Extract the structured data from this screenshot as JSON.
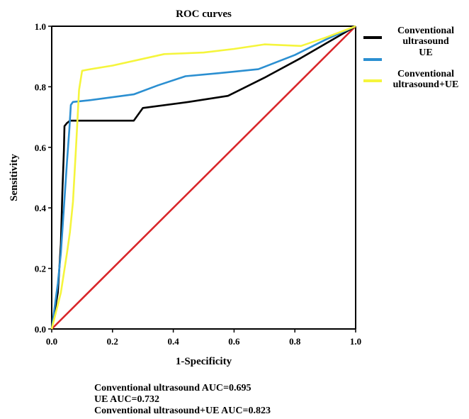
{
  "chart_data": {
    "type": "line",
    "title": "ROC curves",
    "xlabel": "1-Specificity",
    "ylabel": "Sensitivity",
    "xlim": [
      0,
      1
    ],
    "ylim": [
      0,
      1
    ],
    "x_ticks": [
      "0.0",
      "0.2",
      "0.4",
      "0.6",
      "0.8",
      "1.0"
    ],
    "y_ticks": [
      "0.0",
      "0.2",
      "0.4",
      "0.6",
      "0.8",
      "1.0"
    ],
    "grid": false,
    "legend_position": "right",
    "series": [
      {
        "name_lines": [
          "Conventional",
          "ultrasound"
        ],
        "color": "#000000",
        "points": [
          [
            0,
            0
          ],
          [
            0.02,
            0.12
          ],
          [
            0.03,
            0.28
          ],
          [
            0.035,
            0.45
          ],
          [
            0.04,
            0.59
          ],
          [
            0.042,
            0.67
          ],
          [
            0.05,
            0.68
          ],
          [
            0.06,
            0.688
          ],
          [
            0.27,
            0.688
          ],
          [
            0.3,
            0.73
          ],
          [
            0.45,
            0.75
          ],
          [
            0.58,
            0.77
          ],
          [
            0.7,
            0.83
          ],
          [
            0.82,
            0.895
          ],
          [
            1,
            1
          ]
        ]
      },
      {
        "name_lines": [
          "UE"
        ],
        "color": "#2b8fd1",
        "points": [
          [
            0,
            0
          ],
          [
            0.02,
            0.15
          ],
          [
            0.03,
            0.25
          ],
          [
            0.04,
            0.4
          ],
          [
            0.05,
            0.55
          ],
          [
            0.058,
            0.66
          ],
          [
            0.063,
            0.74
          ],
          [
            0.07,
            0.75
          ],
          [
            0.12,
            0.755
          ],
          [
            0.27,
            0.775
          ],
          [
            0.35,
            0.805
          ],
          [
            0.44,
            0.835
          ],
          [
            0.55,
            0.845
          ],
          [
            0.6,
            0.85
          ],
          [
            0.68,
            0.858
          ],
          [
            0.8,
            0.905
          ],
          [
            0.9,
            0.955
          ],
          [
            1,
            1
          ]
        ]
      },
      {
        "name_lines": [
          "Conventional",
          "ultrasound+UE"
        ],
        "color": "#f5f53c",
        "points": [
          [
            0,
            0
          ],
          [
            0.03,
            0.12
          ],
          [
            0.05,
            0.25
          ],
          [
            0.06,
            0.32
          ],
          [
            0.07,
            0.42
          ],
          [
            0.08,
            0.6
          ],
          [
            0.09,
            0.79
          ],
          [
            0.1,
            0.853
          ],
          [
            0.12,
            0.857
          ],
          [
            0.2,
            0.87
          ],
          [
            0.37,
            0.908
          ],
          [
            0.5,
            0.913
          ],
          [
            0.6,
            0.925
          ],
          [
            0.7,
            0.94
          ],
          [
            0.82,
            0.935
          ],
          [
            0.9,
            0.962
          ],
          [
            1,
            1
          ]
        ]
      },
      {
        "name_lines": [],
        "color": "#d9262a",
        "points": [
          [
            0,
            0
          ],
          [
            1,
            1
          ]
        ]
      }
    ]
  },
  "auc_notes": [
    "Conventional ultrasound AUC=0.695",
    "UE AUC=0.732",
    "Conventional ultrasound+UE AUC=0.823"
  ]
}
